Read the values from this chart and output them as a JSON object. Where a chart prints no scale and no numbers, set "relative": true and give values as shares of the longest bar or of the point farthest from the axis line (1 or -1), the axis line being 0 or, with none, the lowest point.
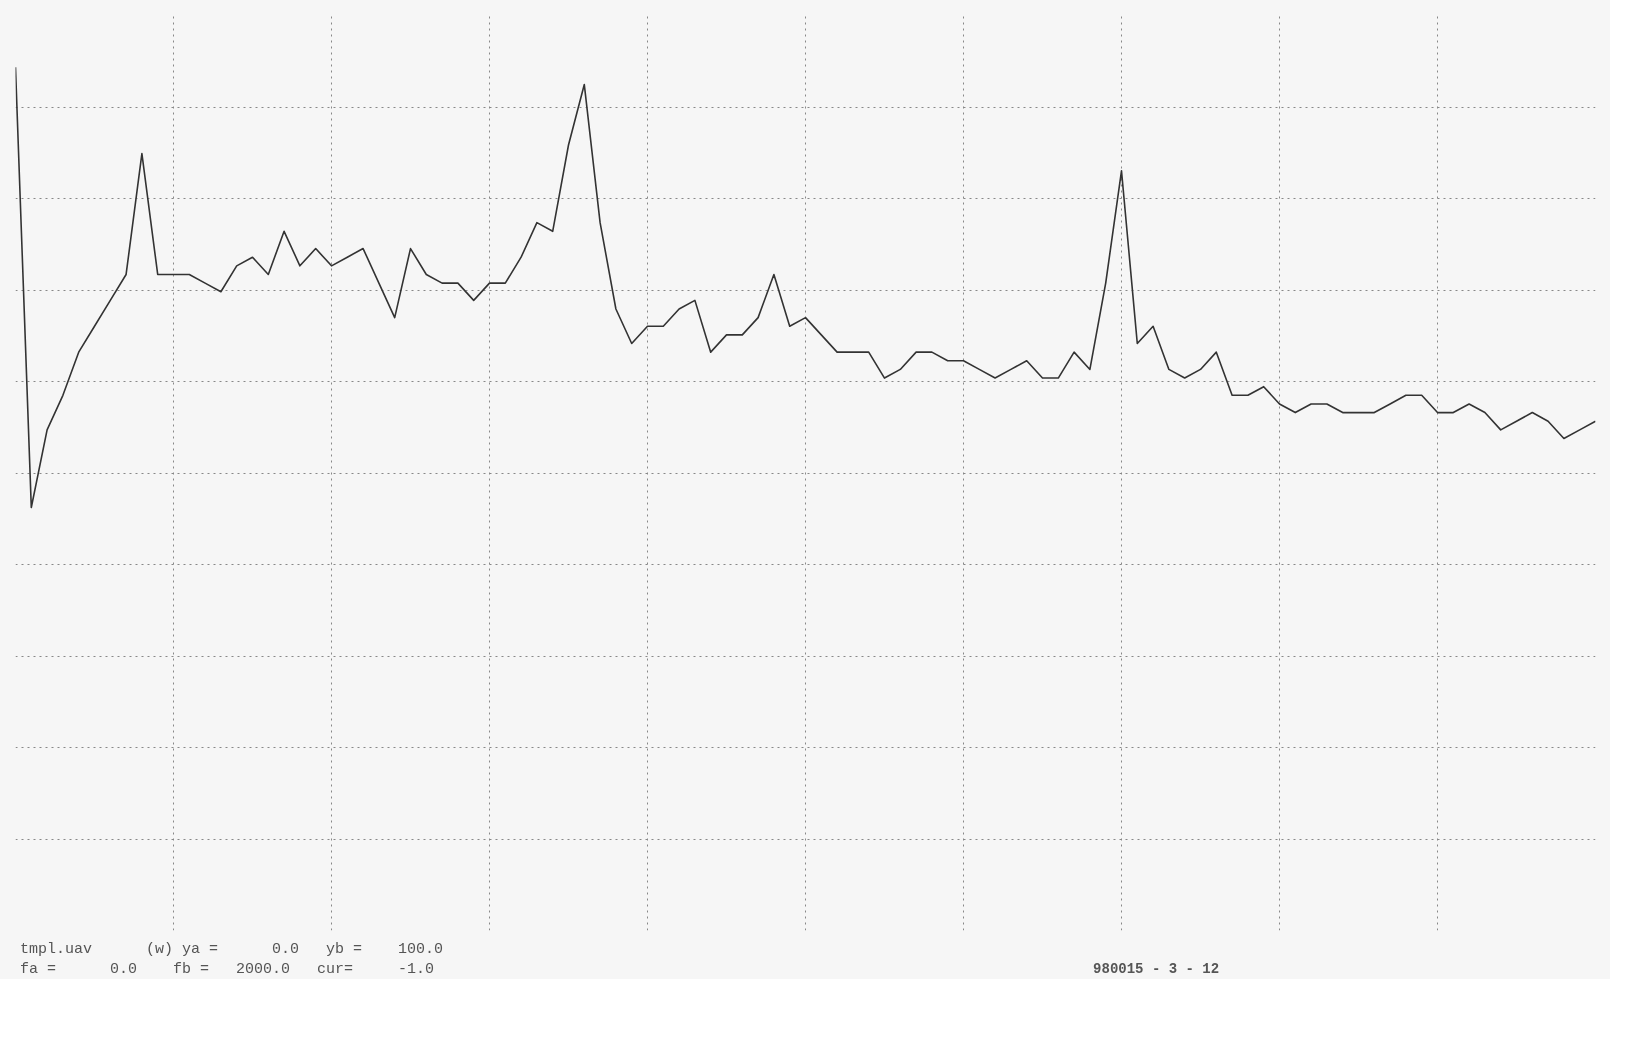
{
  "chart_data": {
    "type": "line",
    "color": "#333333",
    "relative": true,
    "categories": [
      null,
      null,
      null,
      null,
      null,
      null,
      null,
      null,
      null,
      null,
      null,
      null,
      null,
      null,
      null,
      null,
      null,
      null,
      null,
      null,
      null,
      null,
      null,
      null,
      null,
      null,
      null,
      null,
      null,
      null,
      null,
      null,
      null,
      null,
      null,
      null,
      null,
      null,
      null,
      null,
      null,
      null,
      null,
      null,
      null,
      null,
      null,
      null,
      null,
      null,
      null,
      null,
      null,
      null,
      null,
      null,
      null,
      null,
      null,
      null,
      null,
      null,
      null,
      null,
      null,
      null,
      null,
      null,
      null,
      null,
      null,
      null,
      null,
      null,
      null,
      null,
      null,
      null,
      null,
      null,
      null,
      null,
      null,
      null,
      null,
      null,
      null,
      null,
      null,
      null,
      null,
      null,
      null,
      null,
      null,
      null,
      null,
      null,
      null,
      null,
      null
    ],
    "values": [
      1.0,
      0.49,
      0.58,
      0.62,
      0.67,
      0.7,
      0.73,
      0.76,
      0.9,
      0.76,
      0.76,
      0.76,
      0.75,
      0.74,
      0.77,
      0.78,
      0.76,
      0.81,
      0.77,
      0.79,
      0.77,
      0.78,
      0.79,
      0.75,
      0.71,
      0.79,
      0.76,
      0.75,
      0.75,
      0.73,
      0.75,
      0.75,
      0.78,
      0.82,
      0.81,
      0.91,
      0.98,
      0.82,
      0.72,
      0.68,
      0.7,
      0.7,
      0.72,
      0.73,
      0.67,
      0.69,
      0.69,
      0.71,
      0.76,
      0.7,
      0.71,
      0.69,
      0.67,
      0.67,
      0.67,
      0.64,
      0.65,
      0.67,
      0.67,
      0.66,
      0.66,
      0.65,
      0.64,
      0.65,
      0.66,
      0.64,
      0.64,
      0.67,
      0.65,
      0.75,
      0.88,
      0.68,
      0.7,
      0.65,
      0.64,
      0.65,
      0.67,
      0.62,
      0.62,
      0.63,
      0.61,
      0.6,
      0.61,
      0.61,
      0.6,
      0.6,
      0.6,
      0.61,
      0.62,
      0.62,
      0.6,
      0.6,
      0.61,
      0.6,
      0.58,
      0.59,
      0.6,
      0.59,
      0.57,
      0.58,
      0.59
    ],
    "grid": true,
    "line_style": "solid",
    "annotations": [
      "tmpl.uav      (w) ya =      0.0   yb =    100.0\nfa =      0.0    fb =   2000.0   cur=     -1.0",
      "980015 - 3 - 12"
    ]
  }
}
